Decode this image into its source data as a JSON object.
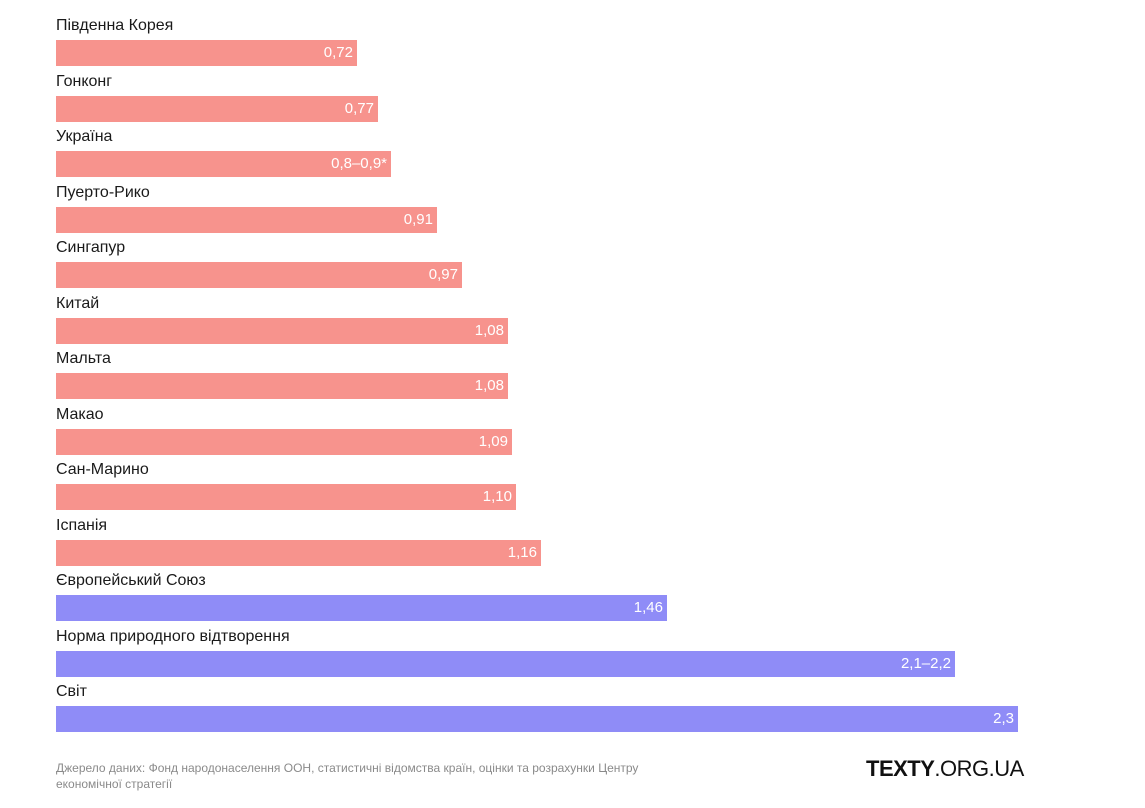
{
  "chart_data": {
    "type": "bar",
    "orientation": "horizontal",
    "xlim": [
      0,
      2.3
    ],
    "categories": [
      "Південна Корея",
      "Гонконг",
      "Україна",
      "Пуерто-Рико",
      "Сингапур",
      "Китай",
      "Мальта",
      "Макао",
      "Сан-Марино",
      "Іспанія",
      "Європейський Союз",
      "Норма природного відтворення",
      "Світ"
    ],
    "values": [
      0.72,
      0.77,
      0.8,
      0.91,
      0.97,
      1.08,
      1.08,
      1.09,
      1.1,
      1.16,
      1.46,
      2.15,
      2.3
    ],
    "value_labels": [
      "0,72",
      "0,77",
      "0,8–0,9*",
      "0,91",
      "0,97",
      "1,08",
      "1,08",
      "1,09",
      "1,10",
      "1,16",
      "1,46",
      "2,1–2,2",
      "2,3"
    ],
    "groups": [
      "country",
      "country",
      "country",
      "country",
      "country",
      "country",
      "country",
      "country",
      "country",
      "country",
      "reference",
      "reference",
      "reference"
    ]
  },
  "colors": {
    "country": "#f7938d",
    "reference": "#8f8cf7"
  },
  "footer": {
    "source": "Джерело даних: Фонд народонаселення ООН, статистичні відомства країн, оцінки та розрахунки Центру економічної стратегії",
    "logo_bold": "TEXTY",
    "logo_rest": ".ORG.UA"
  }
}
